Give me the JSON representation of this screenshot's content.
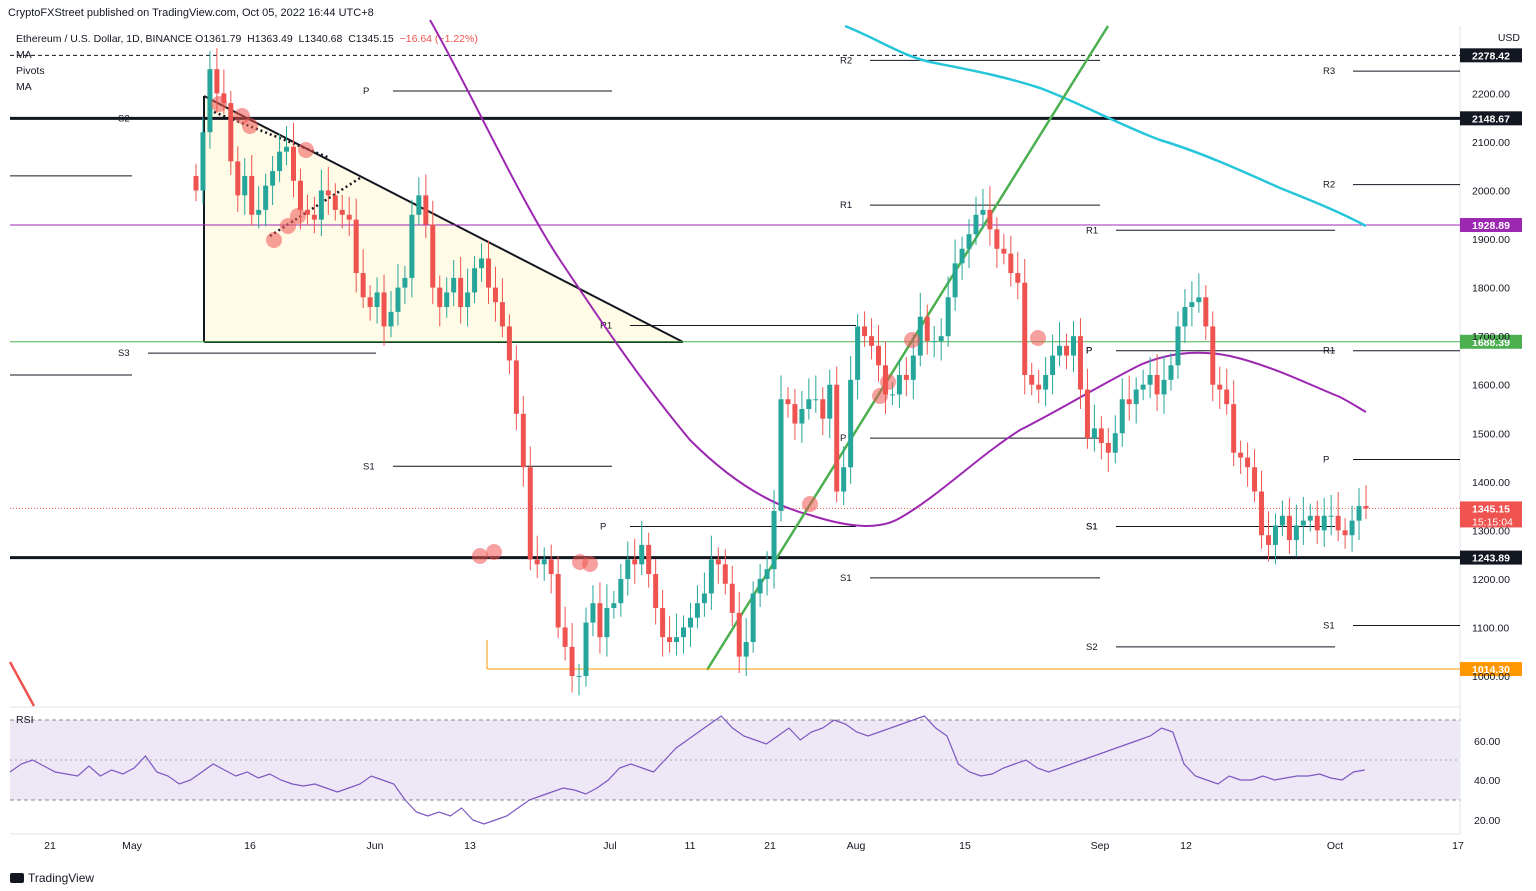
{
  "header": {
    "published": "CryptoFXStreet published on TradingView.com, Oct 05, 2022 16:44 UTC+8",
    "symbol": "Ethereum / U.S. Dollar, 1D, BINANCE",
    "ohlc": {
      "o_label": "O",
      "o": "1361.79",
      "h_label": "H",
      "h": "1363.49",
      "l_label": "L",
      "l": "1340.68",
      "c_label": "C",
      "c": "1345.15",
      "change": "−16.64 (−1.22%)"
    },
    "indicators": [
      "MA",
      "Pivots",
      "MA"
    ],
    "currency": "USD"
  },
  "colors": {
    "up": "#26a69a",
    "down": "#ef5350",
    "ma_fast": "#9c27b0",
    "ma_slow": "#26c6da",
    "trend": "#4caf50",
    "support_green": "#4caf50",
    "resistance_purple": "#9c27b0",
    "triangle_fill": "#fffbe6",
    "orange": "#ff9800",
    "rsi": "#7e57c2",
    "rsi_band": "#ede7f6"
  },
  "chart_data": {
    "type": "candlestick",
    "x_ticks": [
      "21",
      "May",
      "16",
      "Jun",
      "13",
      "Jul",
      "11",
      "21",
      "Aug",
      "15",
      "Sep",
      "12",
      "Oct",
      "17"
    ],
    "y_ticks": [
      "1000.00",
      "1100.00",
      "1200.00",
      "1300.00",
      "1400.00",
      "1500.00",
      "1600.00",
      "1700.00",
      "1800.00",
      "1900.00",
      "2000.00",
      "2100.00",
      "2200.00"
    ],
    "ylim": [
      960,
      2330
    ],
    "levels": [
      {
        "value": 2278.42,
        "label": "2278.42",
        "style": "dashed",
        "color": "#131722"
      },
      {
        "value": 2148.67,
        "label": "2148.67",
        "style": "thick",
        "color": "#131722"
      },
      {
        "value": 1928.89,
        "label": "1928.89",
        "style": "solid",
        "color": "#9c27b0"
      },
      {
        "value": 1688.39,
        "label": "1688.39",
        "style": "solid",
        "color": "#4caf50"
      },
      {
        "value": 1345.15,
        "label": "1345.15",
        "time": "15:15:04",
        "style": "dotted",
        "color": "#ef5350"
      },
      {
        "value": 1243.89,
        "label": "1243.89",
        "style": "thick",
        "color": "#131722"
      },
      {
        "value": 1014.3,
        "label": "1014.30",
        "style": "solid",
        "color": "#ff9800"
      }
    ],
    "pivot_labels": [
      "P",
      "S2",
      "S3",
      "S1",
      "R1",
      "P",
      "S1",
      "P",
      "R2",
      "R1",
      "P",
      "S1",
      "R1",
      "P",
      "S1",
      "S2",
      "R3",
      "R2",
      "R1",
      "P",
      "S1"
    ],
    "rsi": {
      "label": "RSI",
      "y_ticks": [
        "60.00",
        "40.00",
        "20.00"
      ],
      "band": [
        30,
        70
      ]
    }
  },
  "footer": {
    "brand": "TradingView"
  }
}
